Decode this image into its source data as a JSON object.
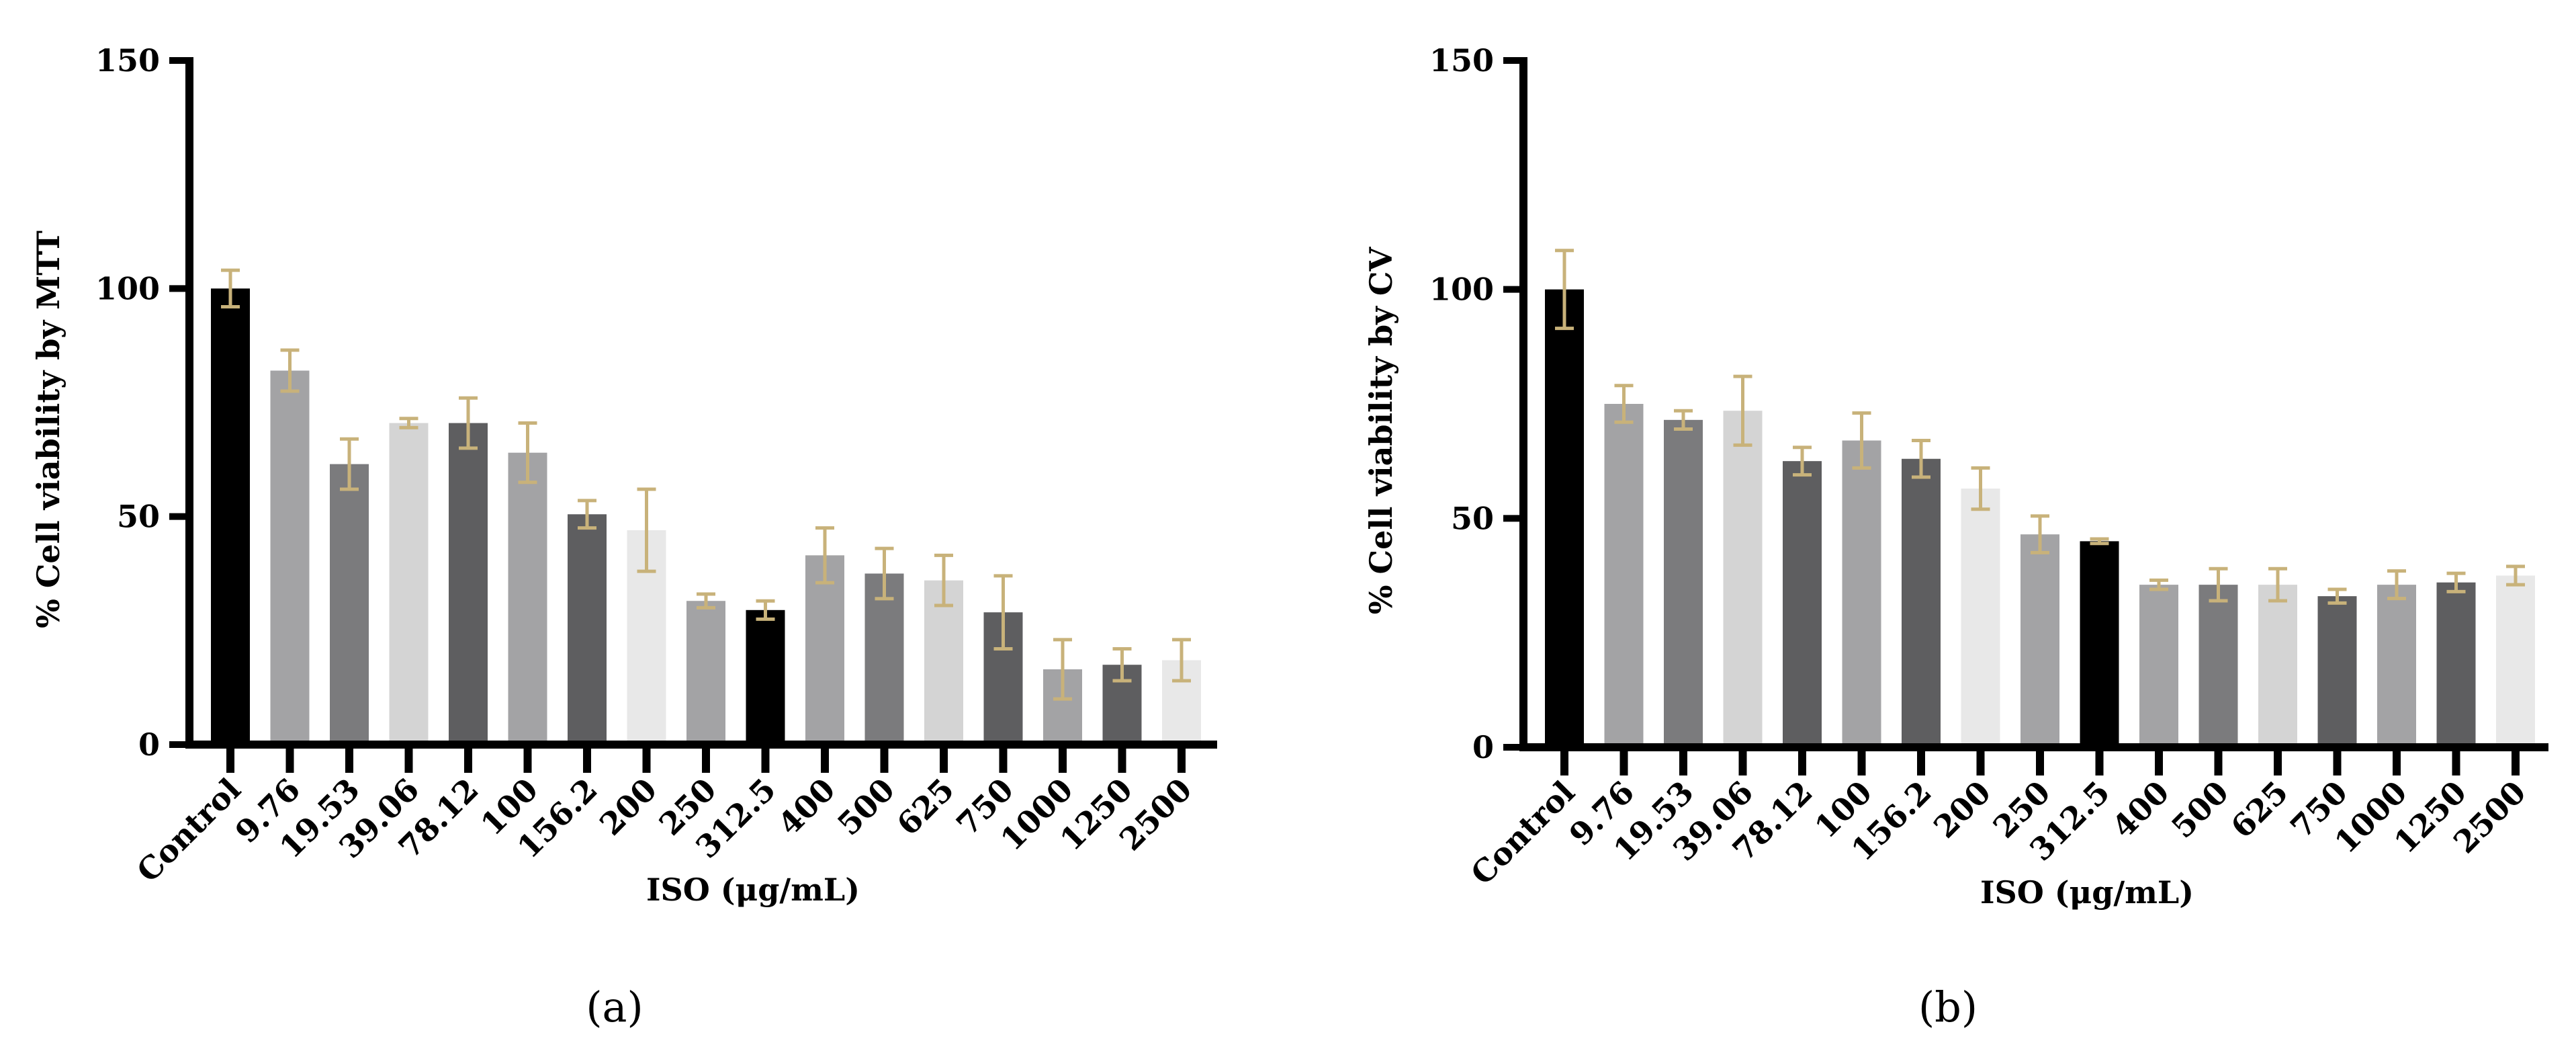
{
  "chart_data": [
    {
      "type": "bar",
      "panel_label": "(a)",
      "categories": [
        "Control",
        "9.76",
        "19.53",
        "39.06",
        "78.12",
        "100",
        "156.2",
        "200",
        "250",
        "312.5",
        "400",
        "500",
        "625",
        "750",
        "1000",
        "1250",
        "2500"
      ],
      "values": [
        100,
        82,
        61.5,
        70.5,
        70.5,
        64,
        50.5,
        47,
        31.5,
        29.5,
        41.5,
        37.5,
        36,
        29,
        16.5,
        17.5,
        18.5
      ],
      "errors": [
        4,
        4.5,
        5.5,
        1,
        5.5,
        6.5,
        3,
        9,
        1.5,
        2,
        6,
        5.5,
        5.5,
        8,
        6.5,
        3.5,
        4.5
      ],
      "bar_colors": [
        "#000000",
        "#a3a3a5",
        "#7b7b7d",
        "#d4d4d4",
        "#5e5e60",
        "#a3a3a5",
        "#5e5e60",
        "#e8e8e8",
        "#a3a3a5",
        "#000000",
        "#a3a3a5",
        "#7b7b7d",
        "#d4d4d4",
        "#5e5e60",
        "#a3a3a5",
        "#5e5e60",
        "#e8e8e8"
      ],
      "error_color": "#c8b27a",
      "xlabel": "ISO (μg/mL)",
      "ylabel": "% Cell viability by MTT",
      "ylim": [
        0,
        150
      ],
      "yticks": [
        0,
        50,
        100,
        150
      ]
    },
    {
      "type": "bar",
      "panel_label": "(b)",
      "categories": [
        "Control",
        "9.76",
        "19.53",
        "39.06",
        "78.12",
        "100",
        "156.2",
        "200",
        "250",
        "312.5",
        "400",
        "500",
        "625",
        "750",
        "1000",
        "1250",
        "2500"
      ],
      "values": [
        100,
        75,
        71.5,
        73.5,
        62.5,
        67,
        63,
        56.5,
        46.5,
        45,
        35.5,
        35.5,
        35.5,
        33,
        35.5,
        36,
        37.5
      ],
      "errors": [
        8.5,
        4,
        2,
        7.5,
        3,
        6,
        4,
        4.5,
        4,
        0.5,
        1,
        3.5,
        3.5,
        1.5,
        3,
        2,
        2
      ],
      "bar_colors": [
        "#000000",
        "#a3a3a5",
        "#7b7b7d",
        "#d4d4d4",
        "#5e5e60",
        "#a3a3a5",
        "#5e5e60",
        "#e8e8e8",
        "#a3a3a5",
        "#000000",
        "#a3a3a5",
        "#7b7b7d",
        "#d4d4d4",
        "#5e5e60",
        "#a3a3a5",
        "#5e5e60",
        "#e8e8e8"
      ],
      "error_color": "#c8b27a",
      "xlabel": "ISO (μg/mL)",
      "ylabel": "% Cell viability by CV",
      "ylim": [
        0,
        150
      ],
      "yticks": [
        0,
        50,
        100,
        150
      ]
    }
  ]
}
